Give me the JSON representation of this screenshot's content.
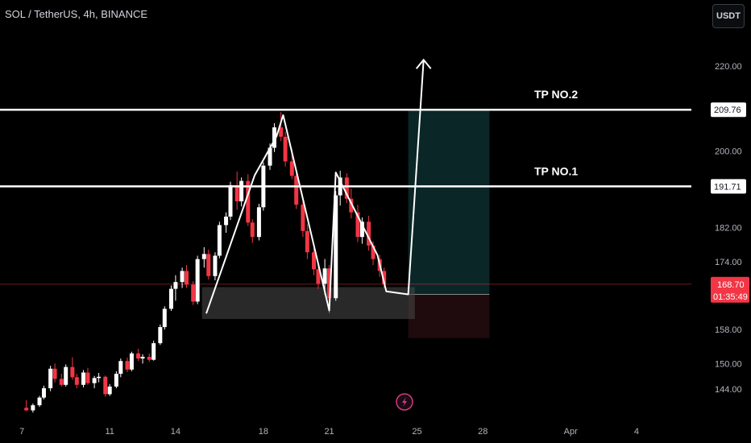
{
  "header": {
    "title": "SOL / TetherUS, 4h, BINANCE",
    "currency_button": "USDT"
  },
  "colors": {
    "background": "#000000",
    "up_candle": "#ffffff",
    "down_candle": "#f23645",
    "current_price_line": "#f23645",
    "profit_zone": "#0b2626",
    "loss_zone": "#1f0b0e",
    "support_zone": "#4a4a4a"
  },
  "icons": [
    "lightning-icon",
    "arrow-up-icon"
  ],
  "chart_data": {
    "type": "candlestick",
    "symbol": "SOL / TetherUS",
    "interval": "4h",
    "exchange": "BINANCE",
    "y_axis": {
      "ticks": [
        "220.00",
        "200.00",
        "182.00",
        "174.00",
        "158.00",
        "150.00",
        "144.00"
      ],
      "range": [
        137,
        228
      ]
    },
    "x_axis": {
      "ticks": [
        "7",
        "11",
        "14",
        "18",
        "21",
        "25",
        "28",
        "Apr",
        "4"
      ],
      "tick_days": [
        7,
        11,
        14,
        18,
        21,
        25,
        28,
        32,
        35
      ],
      "range": [
        6,
        37.5
      ]
    },
    "current_price": "168.70",
    "countdown": "01:35:49",
    "levels": [
      {
        "label": "TP  NO.2",
        "price": "209.76",
        "value": 209.76
      },
      {
        "label": "TP  NO.1",
        "price": "191.71",
        "value": 191.71
      }
    ],
    "support_zone": {
      "low": 160.5,
      "high": 168.0,
      "from_day": 15.2,
      "to_day": 24.9
    },
    "position": {
      "entry": 166.3,
      "take_profit": 209.76,
      "stop": 156.0,
      "from_day": 24.6,
      "to_day": 28.3
    },
    "zigzag": [
      {
        "day": 15.4,
        "price": 161.8
      },
      {
        "day": 17.6,
        "price": 194.3
      },
      {
        "day": 18.6,
        "price": 203.5
      },
      {
        "day": 18.9,
        "price": 208.5
      },
      {
        "day": 21.0,
        "price": 162.5
      },
      {
        "day": 21.3,
        "price": 195.0
      },
      {
        "day": 23.2,
        "price": 175.5
      },
      {
        "day": 23.6,
        "price": 167.0
      },
      {
        "day": 24.6,
        "price": 166.3
      },
      {
        "day": 25.3,
        "price": 221.5
      }
    ],
    "candles": [
      [
        7.2,
        139.6,
        141.4,
        138.8,
        139.0
      ],
      [
        7.5,
        139.0,
        140.6,
        138.5,
        140.2
      ],
      [
        7.8,
        140.2,
        142.4,
        139.8,
        142.0
      ],
      [
        8.0,
        142.0,
        144.8,
        141.6,
        144.2
      ],
      [
        8.3,
        144.2,
        149.5,
        143.5,
        148.8
      ],
      [
        8.5,
        148.8,
        150.0,
        145.6,
        146.4
      ],
      [
        8.8,
        146.4,
        147.6,
        144.6,
        145.0
      ],
      [
        9.0,
        145.0,
        149.8,
        144.6,
        149.2
      ],
      [
        9.3,
        149.2,
        151.5,
        146.2,
        146.8
      ],
      [
        9.5,
        146.8,
        147.6,
        144.2,
        145.0
      ],
      [
        9.8,
        145.0,
        148.5,
        144.4,
        147.9
      ],
      [
        10.0,
        147.9,
        149.0,
        145.0,
        145.4
      ],
      [
        10.3,
        145.4,
        147.1,
        144.2,
        146.6
      ],
      [
        10.5,
        146.6,
        147.8,
        145.6,
        146.9
      ],
      [
        10.8,
        146.9,
        147.2,
        142.2,
        142.8
      ],
      [
        11.0,
        142.8,
        145.2,
        142.4,
        144.6
      ],
      [
        11.3,
        144.6,
        148.2,
        144.2,
        147.6
      ],
      [
        11.5,
        147.6,
        151.2,
        146.8,
        150.6
      ],
      [
        11.8,
        150.6,
        151.4,
        148.0,
        148.6
      ],
      [
        12.0,
        148.6,
        152.8,
        148.2,
        152.4
      ],
      [
        12.3,
        152.4,
        153.5,
        150.6,
        151.2
      ],
      [
        12.5,
        151.2,
        152.2,
        150.0,
        151.6
      ],
      [
        12.8,
        151.6,
        152.4,
        150.4,
        150.9
      ],
      [
        13.0,
        150.9,
        155.4,
        150.7,
        154.8
      ],
      [
        13.3,
        154.8,
        159.2,
        154.4,
        158.6
      ],
      [
        13.5,
        158.6,
        163.5,
        158.0,
        162.9
      ],
      [
        13.8,
        162.9,
        168.4,
        162.4,
        167.6
      ],
      [
        14.0,
        167.6,
        170.8,
        164.8,
        169.2
      ],
      [
        14.3,
        169.2,
        172.6,
        167.8,
        171.8
      ],
      [
        14.5,
        171.8,
        173.2,
        167.8,
        168.6
      ],
      [
        14.8,
        168.6,
        169.4,
        163.8,
        164.6
      ],
      [
        15.0,
        164.6,
        175.4,
        164.0,
        174.6
      ],
      [
        15.3,
        174.6,
        177.4,
        172.6,
        175.8
      ],
      [
        15.5,
        175.8,
        176.8,
        169.8,
        170.6
      ],
      [
        15.8,
        170.6,
        176.2,
        169.6,
        175.4
      ],
      [
        16.0,
        175.4,
        183.4,
        174.8,
        182.6
      ],
      [
        16.3,
        182.6,
        185.6,
        180.8,
        184.6
      ],
      [
        16.5,
        184.6,
        192.8,
        183.8,
        192.0
      ],
      [
        16.8,
        192.0,
        195.2,
        186.2,
        188.2
      ],
      [
        17.0,
        188.2,
        193.8,
        187.0,
        193.0
      ],
      [
        17.3,
        193.0,
        194.6,
        182.4,
        183.2
      ],
      [
        17.5,
        183.2,
        184.0,
        178.4,
        179.8
      ],
      [
        17.8,
        179.8,
        187.6,
        179.0,
        186.8
      ],
      [
        18.0,
        186.8,
        197.4,
        186.0,
        196.6
      ],
      [
        18.3,
        196.6,
        201.8,
        195.6,
        200.8
      ],
      [
        18.5,
        200.8,
        206.6,
        199.8,
        205.6
      ],
      [
        18.8,
        205.6,
        209.2,
        202.4,
        203.4
      ],
      [
        19.0,
        203.4,
        204.6,
        196.4,
        197.6
      ],
      [
        19.3,
        197.6,
        200.6,
        193.4,
        194.2
      ],
      [
        19.5,
        194.2,
        195.2,
        186.4,
        187.4
      ],
      [
        19.8,
        187.4,
        188.4,
        179.8,
        181.2
      ],
      [
        20.0,
        181.2,
        182.8,
        174.6,
        176.2
      ],
      [
        20.3,
        176.2,
        177.6,
        170.8,
        172.2
      ],
      [
        20.5,
        172.2,
        173.8,
        167.6,
        168.8
      ],
      [
        20.8,
        168.8,
        174.6,
        166.2,
        172.4
      ],
      [
        21.0,
        172.4,
        173.2,
        161.8,
        165.4
      ],
      [
        21.3,
        165.4,
        190.6,
        164.8,
        189.6
      ],
      [
        21.5,
        189.6,
        195.4,
        187.2,
        193.8
      ],
      [
        21.8,
        193.8,
        194.8,
        187.8,
        188.8
      ],
      [
        22.0,
        188.8,
        191.2,
        184.2,
        185.6
      ],
      [
        22.3,
        185.6,
        187.4,
        178.6,
        179.8
      ],
      [
        22.5,
        179.8,
        184.4,
        178.2,
        183.4
      ],
      [
        22.8,
        183.4,
        184.8,
        176.6,
        177.8
      ],
      [
        23.0,
        177.8,
        178.8,
        173.2,
        174.6
      ],
      [
        23.3,
        174.6,
        175.6,
        170.4,
        171.8
      ],
      [
        23.5,
        171.8,
        172.6,
        167.8,
        168.7
      ]
    ]
  }
}
